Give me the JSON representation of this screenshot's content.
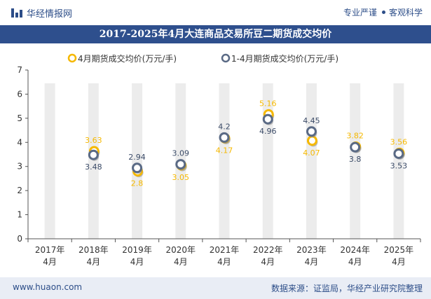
{
  "header": {
    "brand": "华经情报网",
    "tags": [
      "专业严谨",
      "客观科学"
    ]
  },
  "chart_data": {
    "type": "scatter",
    "title": "2017-2025年4月大连商品交易所豆二期货成交均价",
    "categories": [
      "2017年4月",
      "2018年4月",
      "2019年4月",
      "2020年4月",
      "2021年4月",
      "2022年4月",
      "2023年4月",
      "2024年4月",
      "2025年4月"
    ],
    "category_lines": [
      [
        "2017年",
        "4月"
      ],
      [
        "2018年",
        "4月"
      ],
      [
        "2019年",
        "4月"
      ],
      [
        "2020年",
        "4月"
      ],
      [
        "2021年",
        "4月"
      ],
      [
        "2022年",
        "4月"
      ],
      [
        "2023年",
        "4月"
      ],
      [
        "2024年",
        "4月"
      ],
      [
        "2025年",
        "4月"
      ]
    ],
    "series": [
      {
        "name": "4月期货成交均价(万元/手)",
        "color": "#f5b800",
        "values": [
          null,
          3.63,
          2.8,
          3.05,
          4.17,
          5.16,
          4.07,
          3.82,
          3.56
        ]
      },
      {
        "name": "1-4月期货成交均价(万元/手)",
        "color": "#5a6a85",
        "values": [
          null,
          3.48,
          2.94,
          3.09,
          4.2,
          4.96,
          4.45,
          3.8,
          3.53
        ]
      }
    ],
    "labels": {
      "s0": [
        "",
        "3.63",
        "2.8",
        "3.05",
        "4.17",
        "5.16",
        "4.07",
        "3.82",
        "3.56"
      ],
      "s1": [
        "",
        "3.48",
        "2.94",
        "3.09",
        "4.2",
        "4.96",
        "4.45",
        "3.8",
        "3.53"
      ]
    },
    "ylim": [
      0,
      7
    ],
    "yticks": [
      0,
      1,
      2,
      3,
      4,
      5,
      6,
      7
    ],
    "grid": false,
    "legend": "top-center",
    "background_bar_color": "#ececec"
  },
  "footer": {
    "website": "www.huaon.com",
    "source": "数据来源：证监局，华经产业研究院整理"
  }
}
